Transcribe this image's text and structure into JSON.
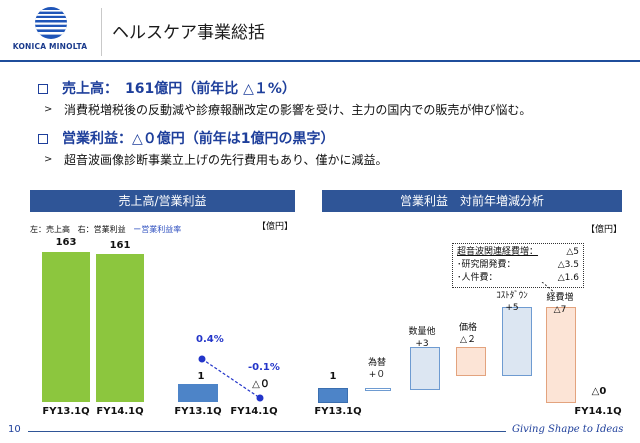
{
  "header": {
    "brand": "KONICA MINOLTA",
    "title": "ヘルスケア事業総括"
  },
  "bullets": [
    {
      "heading": "売上高：　161億円（前年比 △１%）",
      "detail": "消費税増税後の反動減や診療報酬改定の影響を受け、主力の国内での販売が伸び悩む。"
    },
    {
      "heading": "営業利益：△０億円（前年は1億円の黒字）",
      "detail": "超音波画像診断事業立上げの先行費用もあり、僅かに減益。"
    }
  ],
  "left_panel": {
    "title": "売上高/営業利益",
    "unit": "【億円】",
    "legend_left": "左：売上高",
    "legend_right": "右：営業利益",
    "legend_line": "ー営業利益率"
  },
  "right_panel": {
    "title": "営業利益　対前年増減分析",
    "unit": "【億円】",
    "note": [
      {
        "label": "超音波関連経費増：",
        "value": "△5"
      },
      {
        "label": "･研究開発費：",
        "value": "△3.5"
      },
      {
        "label": "･人件費：",
        "value": "△1.6"
      }
    ]
  },
  "chart_data": [
    {
      "type": "bar",
      "categories": [
        "FY13.1Q",
        "FY14.1Q"
      ],
      "series": [
        {
          "name": "売上高",
          "values": [
            163,
            161
          ]
        }
      ],
      "value_labels": [
        "163",
        "161"
      ],
      "ylim": [
        0,
        180
      ]
    },
    {
      "type": "bar",
      "categories": [
        "FY13.1Q",
        "FY14.1Q"
      ],
      "series": [
        {
          "name": "営業利益",
          "values": [
            1,
            0
          ]
        },
        {
          "name": "営業利益率",
          "values": [
            0.4,
            -0.1
          ],
          "kind": "line"
        }
      ],
      "value_labels": [
        "1",
        "△０"
      ],
      "rate_labels": [
        "0.4%",
        "-0.1%"
      ]
    },
    {
      "type": "bar",
      "subtype": "waterfall",
      "steps": [
        {
          "label": "FY13.1Q",
          "value_label": "1",
          "value": 1,
          "kind": "total",
          "color": "#4d84c8"
        },
        {
          "label": "為替",
          "value_label": "+０",
          "value": 0,
          "kind": "delta",
          "color": "#ffffff"
        },
        {
          "label": "数量他",
          "value_label": "+3",
          "value": 3,
          "kind": "delta",
          "color": "#dce6f2"
        },
        {
          "label": "価格",
          "value_label": "△２",
          "value": -2,
          "kind": "delta",
          "color": "#fce4d6"
        },
        {
          "label": "ｺｽﾄﾀﾞｳﾝ",
          "value_label": "+5",
          "value": 5,
          "kind": "delta",
          "color": "#dce6f2"
        },
        {
          "label": "経費増",
          "value_label": "△7",
          "value": -7,
          "kind": "delta",
          "color": "#fce4d6"
        },
        {
          "label": "FY14.1Q",
          "value_label": "△0",
          "value": 0,
          "kind": "total",
          "color": "#4d84c8"
        }
      ]
    }
  ],
  "footer": {
    "page_number": "10",
    "tagline": "Giving Shape to Ideas"
  }
}
